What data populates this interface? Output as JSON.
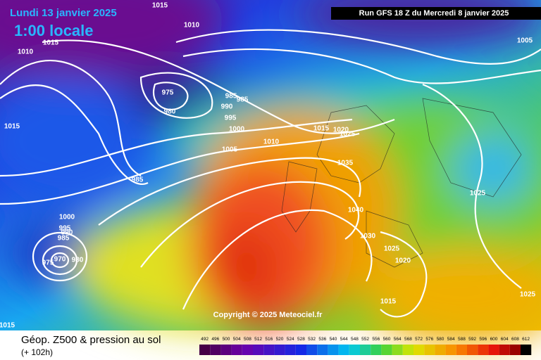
{
  "header": {
    "valid_time": "Lundi 13 janvier 2025",
    "local_time": "1:00 locale",
    "run": "Run GFS 18 Z du Mercredi 8 janvier 2025"
  },
  "copyright": "Copyright © 2025 Meteociel.fr",
  "footer": {
    "title": "Géop. Z500 & pression au sol",
    "lead": "(+ 102h)"
  },
  "color_scale": [
    492,
    496,
    500,
    504,
    508,
    512,
    516,
    520,
    524,
    528,
    532,
    536,
    540,
    544,
    548,
    552,
    556,
    560,
    564,
    568,
    572,
    576,
    580,
    584,
    588,
    592,
    596,
    600,
    604,
    608,
    612
  ],
  "isobar_labels": [
    "1015",
    "1010",
    "1010",
    "1015",
    "975",
    "980",
    "985",
    "985",
    "990",
    "995",
    "1000",
    "1005",
    "1010",
    "1015",
    "1020",
    "1025",
    "1035",
    "1040",
    "1030",
    "1025",
    "1020",
    "1015",
    "1025",
    "1025",
    "1005",
    "1015",
    "985",
    "1000",
    "995",
    "990",
    "985",
    "970",
    "980",
    "975",
    "1015"
  ]
}
